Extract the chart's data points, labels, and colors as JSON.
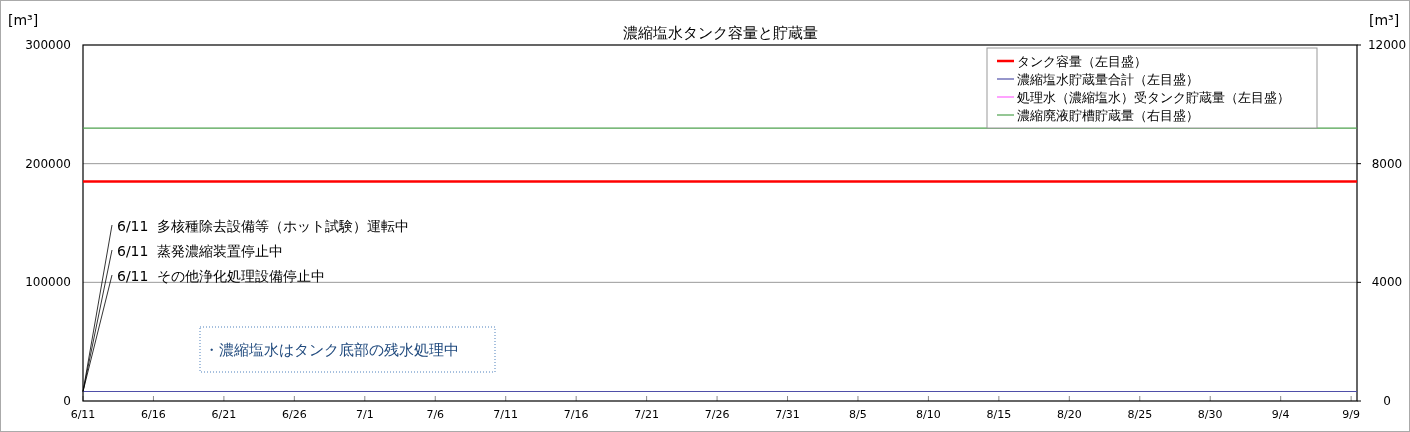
{
  "chart_data": {
    "type": "line",
    "title": "濃縮塩水タンク容量と貯蔵量",
    "ylabel": "[m³]",
    "y2label": "[m³]",
    "xlim": [
      "--06-11",
      "--09-09T10:00"
    ],
    "xticks": [
      {
        "value": "--06-11",
        "label": "6/11"
      },
      {
        "value": "--06-16",
        "label": "6/16"
      },
      {
        "value": "--06-21",
        "label": "6/21"
      },
      {
        "value": "--06-26",
        "label": "6/26"
      },
      {
        "value": "--07-01",
        "label": "7/1"
      },
      {
        "value": "--07-06",
        "label": "7/6"
      },
      {
        "value": "--07-11",
        "label": "7/11"
      },
      {
        "value": "--07-16",
        "label": "7/16"
      },
      {
        "value": "--07-21",
        "label": "7/21"
      },
      {
        "value": "--07-26",
        "label": "7/26"
      },
      {
        "value": "--07-31",
        "label": "7/31"
      },
      {
        "value": "--08-05",
        "label": "8/5"
      },
      {
        "value": "--08-10",
        "label": "8/10"
      },
      {
        "value": "--08-15",
        "label": "8/15"
      },
      {
        "value": "--08-20",
        "label": "8/20"
      },
      {
        "value": "--08-25",
        "label": "8/25"
      },
      {
        "value": "--08-30",
        "label": "8/30"
      },
      {
        "value": "--09-04",
        "label": "9/4"
      },
      {
        "value": "--09-09",
        "label": "9/9"
      }
    ],
    "ylim": [
      0,
      300000
    ],
    "yticks": [
      0,
      100000,
      200000,
      300000
    ],
    "y2lim": [
      0,
      12000
    ],
    "y2ticks": [
      0,
      4000,
      8000,
      12000
    ],
    "grid": "y",
    "legend": "top right",
    "marker": "none",
    "series": [
      {
        "name": "タンク容量（左目盛）",
        "color": "#ff0000",
        "x": [
          "--06-11",
          "--09-09T10:00"
        ],
        "values": [
          185000,
          185000
        ]
      },
      {
        "name": "濃縮塩水貯蔵量合計（左目盛）",
        "color": "#4f4fa8",
        "x": [
          "--06-11",
          "--09-09T10:00"
        ],
        "values": [
          8000,
          8000
        ]
      },
      {
        "name": "処理水（濃縮塩水）受タンク貯蔵量（左目盛）",
        "color": "#ff66ff",
        "values": [
          null,
          null
        ]
      },
      {
        "name": "濃縮廃液貯槽貯蔵量（右目盛）",
        "color": "#4ea24e",
        "axis": "y2",
        "x": [
          "--06-11",
          "--09-09T10:00"
        ],
        "values": [
          9200,
          9200
        ]
      }
    ],
    "annotations": [
      {
        "text": "6/11  多核種除去設備等（ホット試験）運転中",
        "x": "--06-11",
        "y": 8000
      },
      {
        "text": "6/11  蒸発濃縮装置停止中",
        "x": "--06-11",
        "y": 8000
      },
      {
        "text": "6/11  その他浄化処理設備停止中",
        "x": "--06-11",
        "y": 8000
      },
      "・濃縮塩水はタンク底部の残水処理中"
    ]
  }
}
